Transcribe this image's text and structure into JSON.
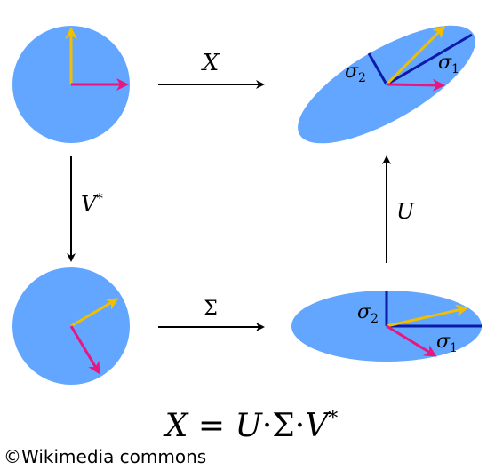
{
  "colors": {
    "disk": "#63a6ff",
    "yellow_arrow": "#f2bf00",
    "magenta_arrow": "#e8177f",
    "axis_line": "#0b1aa8",
    "arrow_black": "#000000"
  },
  "labels": {
    "top_arrow": "X",
    "left_arrow": "V*",
    "bottom_arrow": "Σ",
    "right_arrow": "U",
    "sigma1_top": "σ1",
    "sigma2_top": "σ2",
    "sigma1_bottom": "σ1",
    "sigma2_bottom": "σ2"
  },
  "equation": {
    "lhs": "X",
    "eq": " = ",
    "u": "U",
    "dot1": "·",
    "sigma": "Σ",
    "dot2": "·",
    "v": "V",
    "star": "*"
  },
  "credit": "©Wikimedia commons"
}
